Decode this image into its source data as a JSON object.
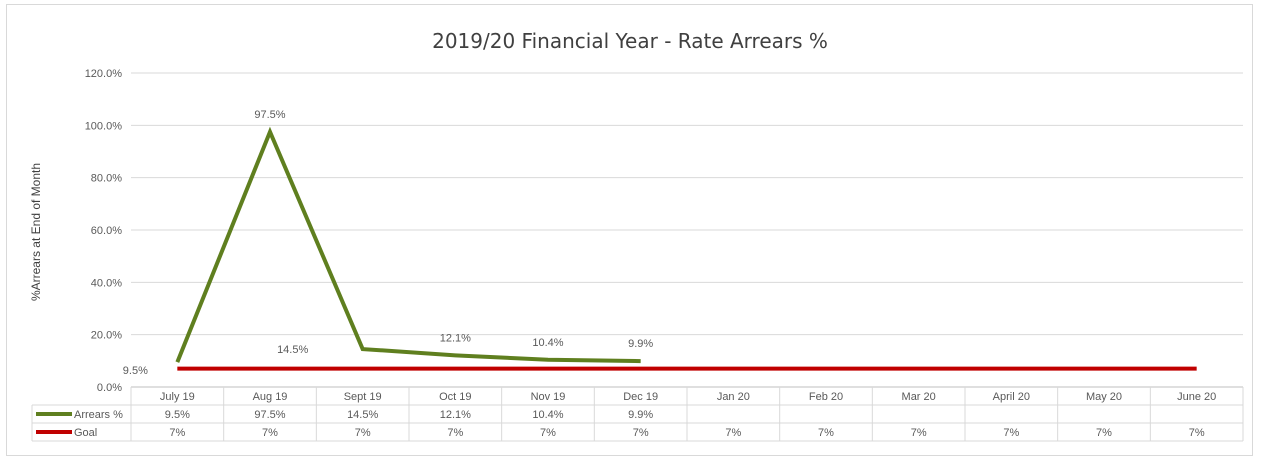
{
  "chart_data": {
    "type": "line",
    "title": "2019/20 Financial Year - Rate Arrears %",
    "ylabel": "%Arrears at End of Month",
    "xlabel": "",
    "ylim": [
      0,
      120
    ],
    "yticks": [
      "0.0%",
      "20.0%",
      "40.0%",
      "60.0%",
      "80.0%",
      "100.0%",
      "120.0%"
    ],
    "categories": [
      "July 19",
      "Aug 19",
      "Sept 19",
      "Oct 19",
      "Nov 19",
      "Dec 19",
      "Jan 20",
      "Feb 20",
      "Mar 20",
      "April 20",
      "May 20",
      "June 20"
    ],
    "grid": true,
    "legend": "data-table",
    "series": [
      {
        "name": "Arrears %",
        "color": "#5f7f1f",
        "values": [
          9.5,
          97.5,
          14.5,
          12.1,
          10.4,
          9.9,
          null,
          null,
          null,
          null,
          null,
          null
        ],
        "labels": [
          "9.5%",
          "97.5%",
          "14.5%",
          "12.1%",
          "10.4%",
          "9.9%",
          "",
          "",
          "",
          "",
          "",
          ""
        ]
      },
      {
        "name": "Goal",
        "color": "#c00000",
        "values": [
          7,
          7,
          7,
          7,
          7,
          7,
          7,
          7,
          7,
          7,
          7,
          7
        ],
        "labels": [
          "7%",
          "7%",
          "7%",
          "7%",
          "7%",
          "7%",
          "7%",
          "7%",
          "7%",
          "7%",
          "7%",
          "7%"
        ]
      }
    ]
  }
}
